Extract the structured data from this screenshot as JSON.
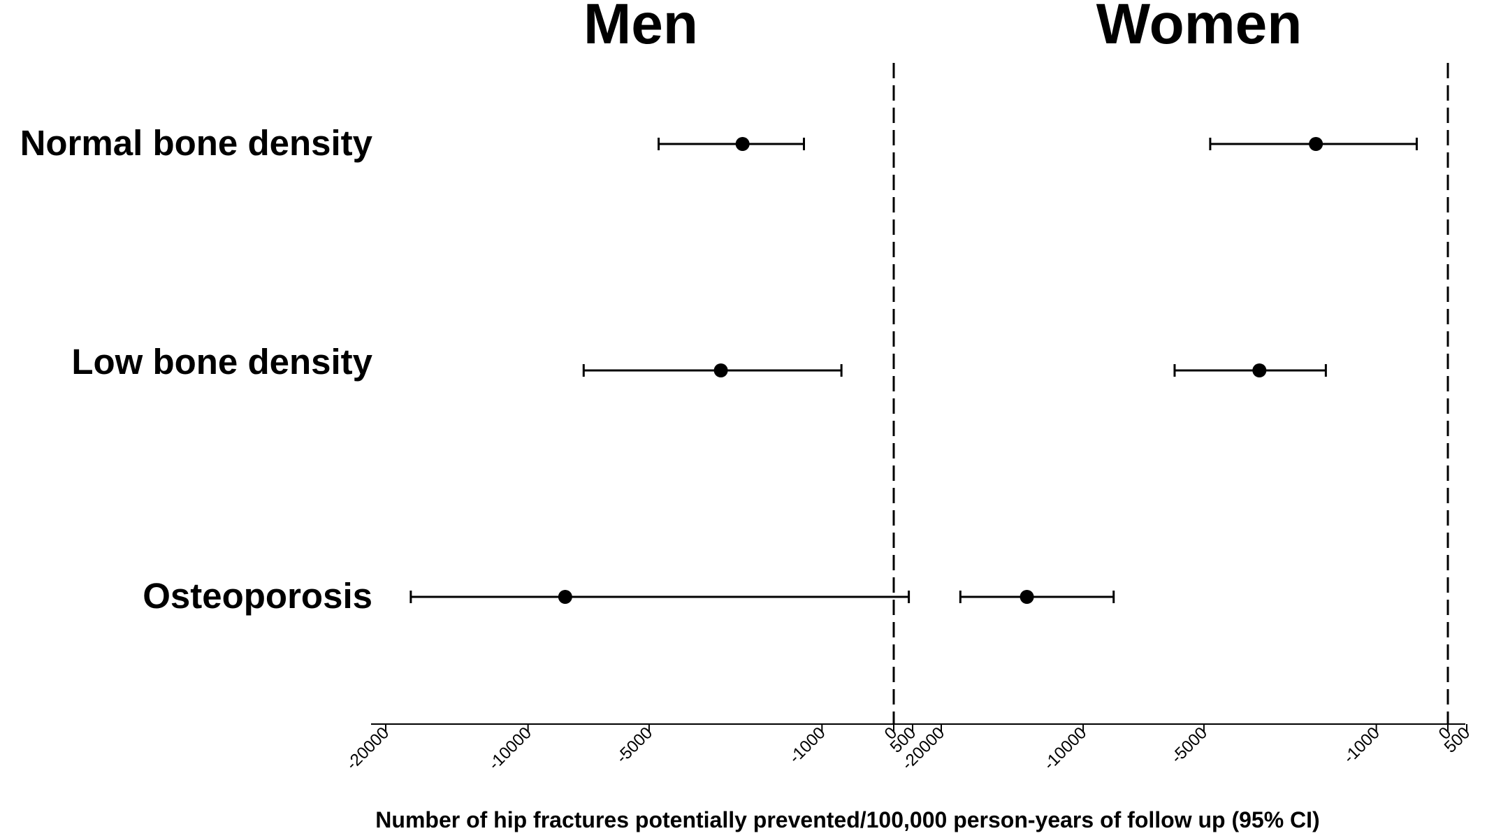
{
  "chart_data": {
    "type": "forest",
    "xlabel": "Number of hip fractures potentially prevented/100,000 person-years of follow up (95% CI)",
    "categories": [
      "Normal bone density",
      "Low bone density",
      "Osteoporosis"
    ],
    "x_scale": "symlog",
    "x_ticks": [
      -20000,
      -10000,
      -5000,
      -1000,
      0,
      500
    ],
    "x_tick_labels": [
      "-20000",
      "-10000",
      "-5000",
      "-1000",
      "0",
      "500"
    ],
    "reference_line": 0,
    "panels": [
      {
        "title": "Men",
        "estimates": [
          {
            "category": "Normal bone density",
            "estimate": -2500,
            "lower": -4700,
            "upper": -1300
          },
          {
            "category": "Low bone density",
            "estimate": -3000,
            "lower": -7400,
            "upper": -700
          },
          {
            "category": "Osteoporosis",
            "estimate": -8200,
            "lower": -17800,
            "upper": 400
          }
        ]
      },
      {
        "title": "Women",
        "estimates": [
          {
            "category": "Normal bone density",
            "estimate": -2100,
            "lower": -4800,
            "upper": -400
          },
          {
            "category": "Low bone density",
            "estimate": -3400,
            "lower": -6000,
            "upper": -1900
          },
          {
            "category": "Osteoporosis",
            "estimate": -13300,
            "lower": -18300,
            "upper": -8500
          }
        ]
      }
    ]
  }
}
